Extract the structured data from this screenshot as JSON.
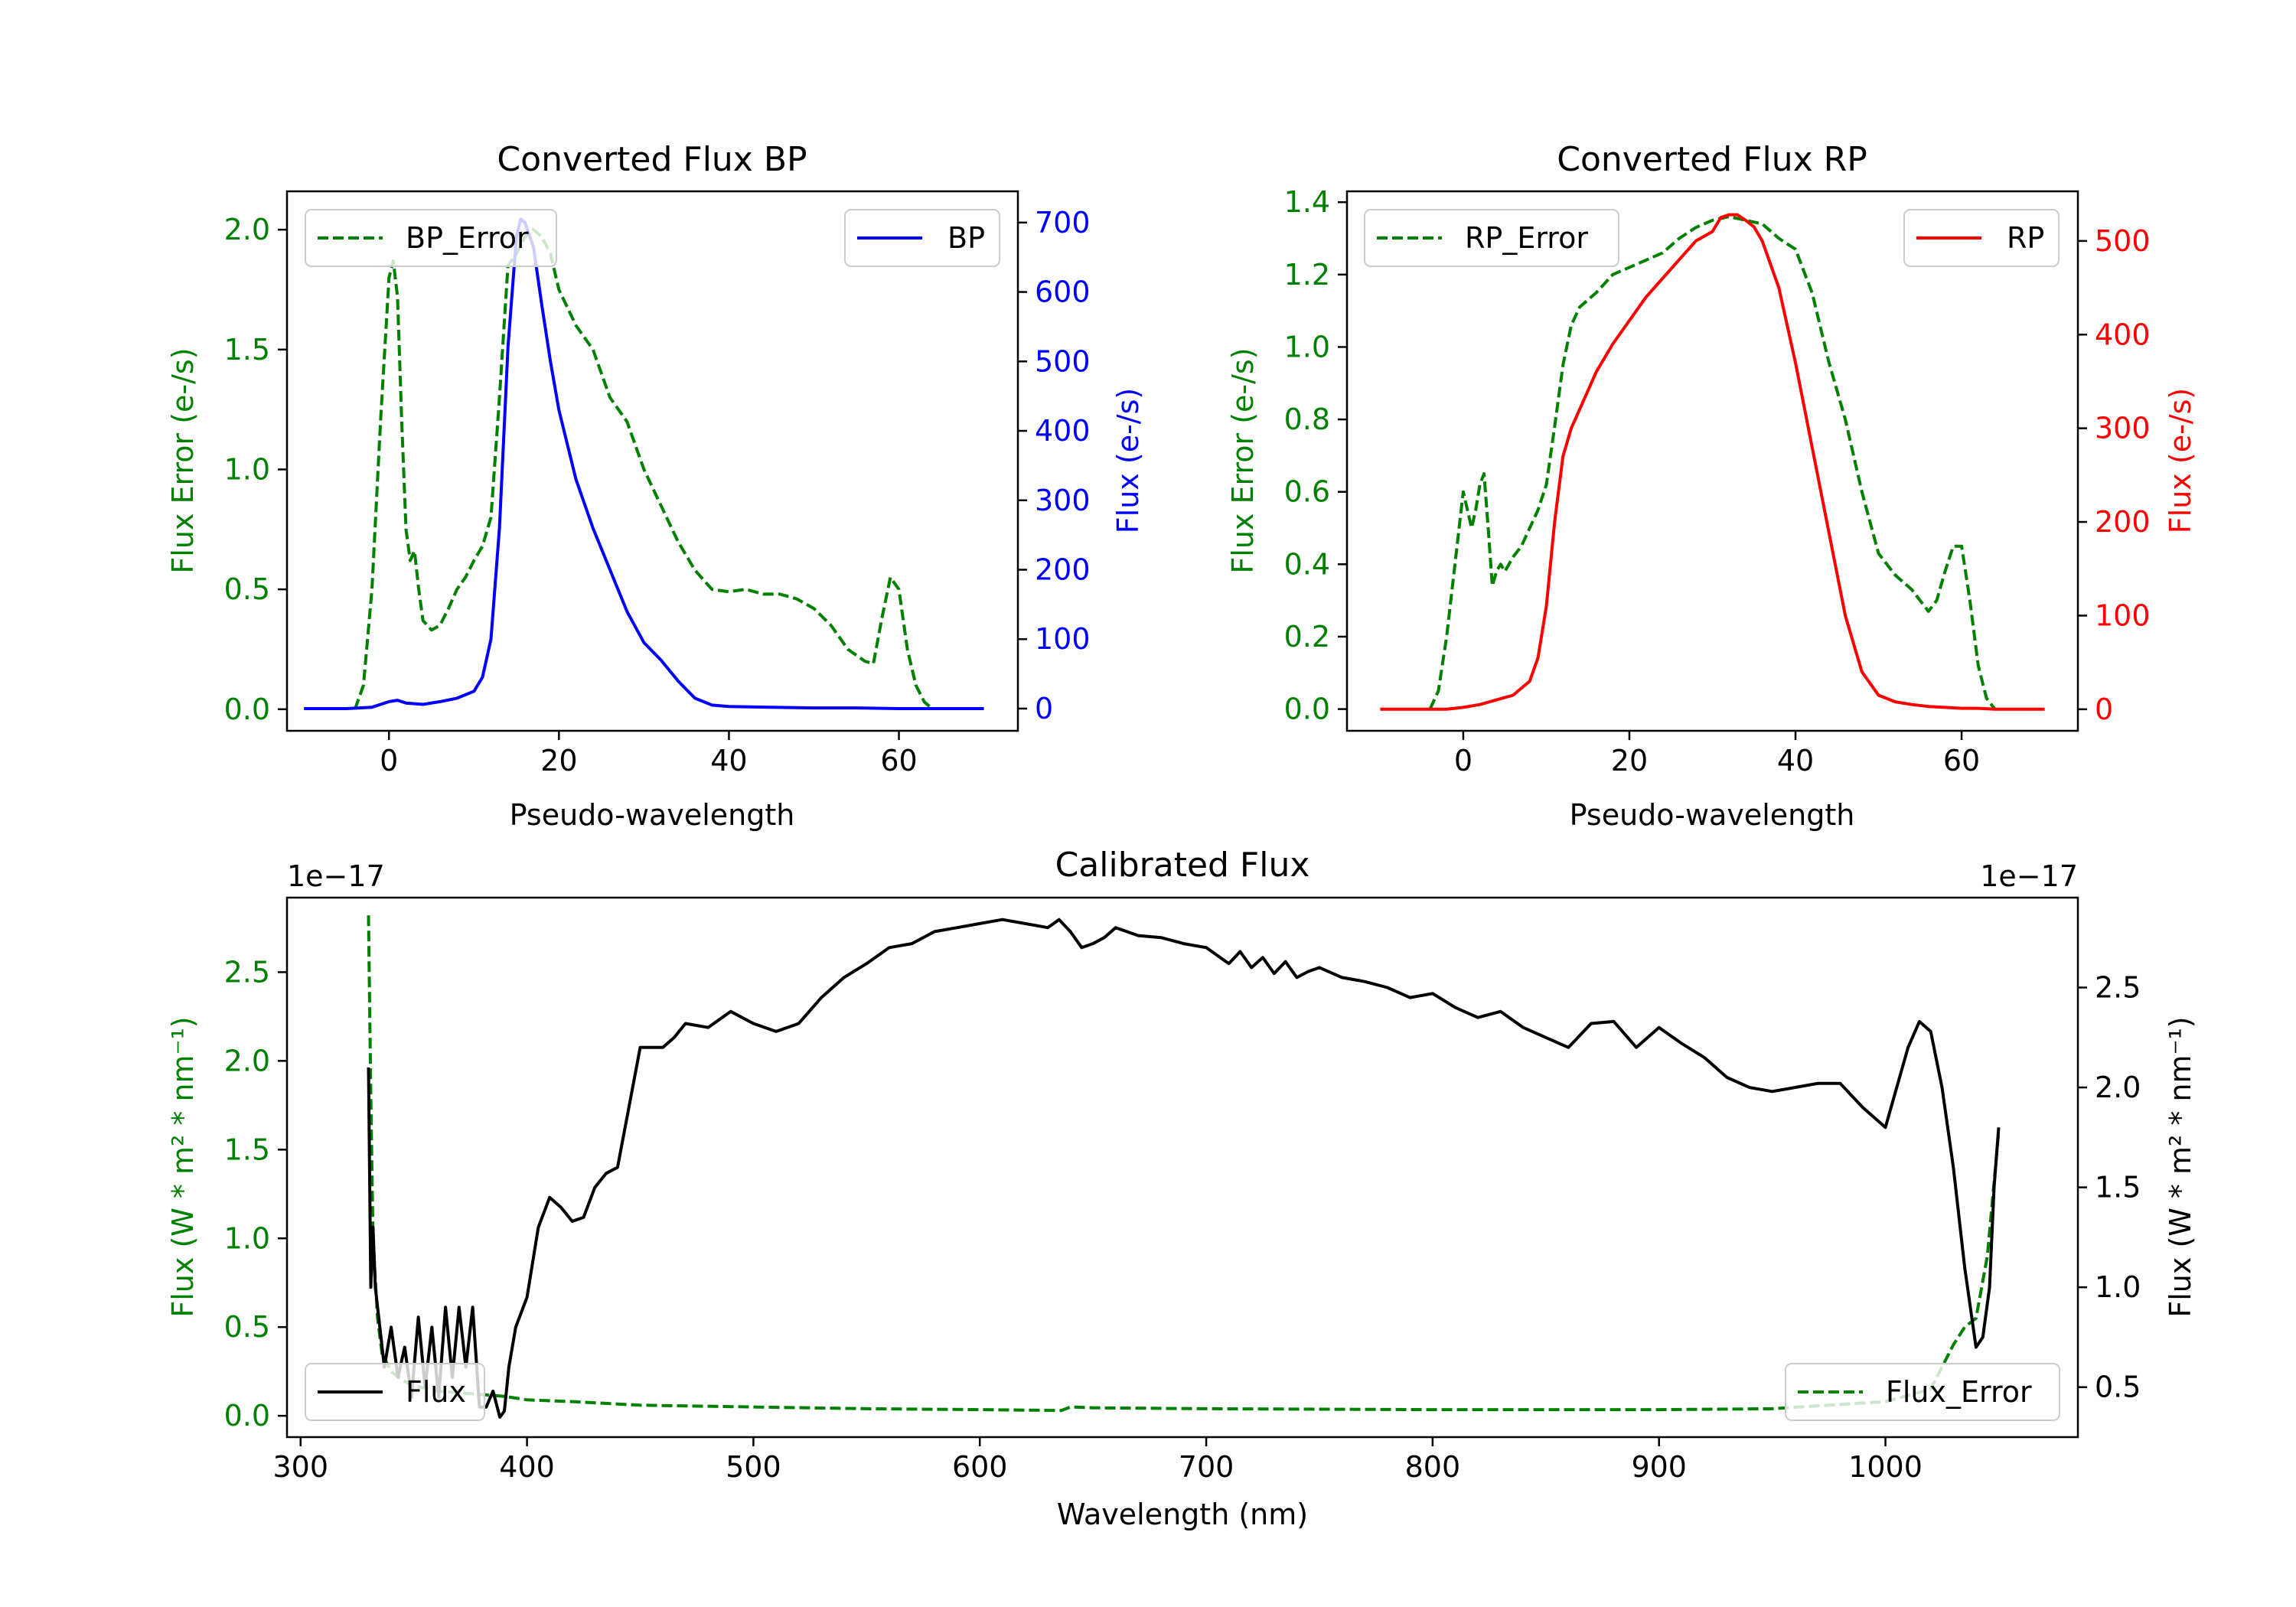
{
  "colors": {
    "green": "#008000",
    "blue": "#0000ff",
    "red": "#ff0000",
    "black": "#000000"
  },
  "chart_data": [
    {
      "type": "line",
      "id": "bp",
      "title": "Converted Flux BP",
      "xlabel": "Pseudo-wavelength",
      "ylabel_left": "Flux Error (e-/s)",
      "ylabel_right": "Flux (e-/s)",
      "xlim": [
        -12,
        74
      ],
      "ylim_left": [
        -0.09,
        2.16
      ],
      "ylim_right": [
        -32,
        745
      ],
      "xticks": [
        0,
        20,
        40,
        60
      ],
      "yticks_left": [
        0.0,
        0.5,
        1.0,
        1.5,
        2.0
      ],
      "yticks_right": [
        0,
        100,
        200,
        300,
        400,
        500,
        600,
        700
      ],
      "legend_left": "top-left",
      "legend_right": "top-right",
      "series": [
        {
          "name": "BP_Error",
          "axis": "left",
          "style": "dashed",
          "color": "#008000",
          "x": [
            -4,
            -3,
            -2,
            -1,
            0,
            0.5,
            1,
            1.5,
            2,
            2.5,
            3,
            3.5,
            4,
            5,
            6,
            7,
            8,
            9,
            10,
            11,
            12,
            13,
            14,
            15,
            16,
            17,
            18,
            19,
            20,
            22,
            24,
            26,
            28,
            30,
            32,
            34,
            36,
            38,
            40,
            42,
            44,
            46,
            48,
            50,
            52,
            54,
            56,
            57,
            58,
            59,
            60,
            61,
            62,
            63,
            64
          ],
          "y": [
            0.0,
            0.1,
            0.5,
            1.2,
            1.8,
            1.87,
            1.72,
            1.2,
            0.75,
            0.62,
            0.66,
            0.5,
            0.37,
            0.33,
            0.35,
            0.42,
            0.5,
            0.55,
            0.62,
            0.68,
            0.8,
            1.3,
            1.85,
            1.9,
            1.97,
            2.0,
            1.97,
            1.9,
            1.75,
            1.6,
            1.5,
            1.3,
            1.2,
            1.0,
            0.85,
            0.7,
            0.58,
            0.5,
            0.49,
            0.5,
            0.48,
            0.48,
            0.46,
            0.42,
            0.35,
            0.25,
            0.2,
            0.19,
            0.38,
            0.55,
            0.5,
            0.25,
            0.1,
            0.03,
            0.0
          ]
        },
        {
          "name": "BP",
          "axis": "right",
          "style": "solid",
          "color": "#0000ff",
          "x": [
            -10,
            -5,
            -2,
            0,
            1,
            2,
            4,
            6,
            8,
            10,
            11,
            12,
            13,
            14,
            15,
            15.5,
            16,
            17,
            18,
            19,
            20,
            22,
            24,
            26,
            28,
            30,
            32,
            34,
            36,
            38,
            40,
            45,
            50,
            55,
            60,
            65,
            70
          ],
          "y": [
            0,
            0,
            2,
            10,
            12,
            8,
            6,
            10,
            15,
            25,
            45,
            100,
            260,
            520,
            680,
            705,
            700,
            665,
            580,
            500,
            430,
            330,
            260,
            200,
            140,
            95,
            70,
            40,
            15,
            5,
            3,
            2,
            1,
            1,
            0,
            0,
            0
          ]
        }
      ]
    },
    {
      "type": "line",
      "id": "rp",
      "title": "Converted Flux RP",
      "xlabel": "Pseudo-wavelength",
      "ylabel_left": "Flux Error (e-/s)",
      "ylabel_right": "Flux (e-/s)",
      "xlim": [
        -14,
        74
      ],
      "ylim_left": [
        -0.06,
        1.43
      ],
      "ylim_right": [
        -23,
        553
      ],
      "xticks": [
        0,
        20,
        40,
        60
      ],
      "yticks_left": [
        0.0,
        0.2,
        0.4,
        0.6,
        0.8,
        1.0,
        1.2,
        1.4
      ],
      "yticks_right": [
        0,
        100,
        200,
        300,
        400,
        500
      ],
      "legend_left": "top-left",
      "legend_right": "top-right",
      "series": [
        {
          "name": "RP_Error",
          "axis": "left",
          "style": "dashed",
          "color": "#008000",
          "x": [
            -4,
            -3,
            -2,
            -1,
            0,
            0.5,
            1,
            1.5,
            2,
            2.5,
            3,
            3.5,
            4,
            4.5,
            5,
            6,
            7,
            8,
            9,
            10,
            11,
            12,
            13,
            14,
            16,
            18,
            20,
            22,
            24,
            26,
            28,
            30,
            32,
            34,
            36,
            38,
            40,
            42,
            44,
            46,
            48,
            50,
            52,
            54,
            55,
            56,
            57,
            58,
            59,
            60,
            61,
            62,
            63,
            64
          ],
          "y": [
            0.0,
            0.05,
            0.2,
            0.4,
            0.6,
            0.55,
            0.5,
            0.55,
            0.62,
            0.65,
            0.5,
            0.34,
            0.38,
            0.4,
            0.38,
            0.42,
            0.45,
            0.5,
            0.55,
            0.62,
            0.78,
            0.95,
            1.06,
            1.11,
            1.15,
            1.2,
            1.22,
            1.24,
            1.26,
            1.3,
            1.33,
            1.35,
            1.36,
            1.35,
            1.34,
            1.3,
            1.27,
            1.15,
            0.96,
            0.8,
            0.6,
            0.43,
            0.37,
            0.33,
            0.3,
            0.27,
            0.3,
            0.38,
            0.45,
            0.45,
            0.3,
            0.12,
            0.03,
            0.0
          ]
        },
        {
          "name": "RP",
          "axis": "right",
          "style": "solid",
          "color": "#ff0000",
          "x": [
            -10,
            -5,
            -2,
            0,
            2,
            4,
            6,
            8,
            9,
            10,
            11,
            12,
            13,
            14,
            16,
            18,
            20,
            22,
            24,
            26,
            28,
            30,
            31,
            32,
            33,
            34,
            35,
            36,
            38,
            40,
            42,
            44,
            46,
            48,
            50,
            52,
            54,
            56,
            58,
            60,
            62,
            64,
            66,
            70
          ],
          "y": [
            0,
            0,
            0,
            2,
            5,
            10,
            15,
            30,
            55,
            110,
            200,
            270,
            300,
            320,
            360,
            390,
            415,
            440,
            460,
            480,
            500,
            510,
            525,
            528,
            528,
            522,
            515,
            500,
            450,
            370,
            280,
            190,
            100,
            40,
            15,
            8,
            5,
            3,
            2,
            1,
            1,
            0,
            0,
            0
          ]
        }
      ]
    },
    {
      "type": "line",
      "id": "cal",
      "title": "Calibrated Flux",
      "xlabel": "Wavelength (nm)",
      "ylabel_left": "Flux (W * m² * nm⁻¹)",
      "ylabel_right": "Flux (W * m² * nm⁻¹)",
      "offset_left": "1e−17",
      "offset_right": "1e−17",
      "xlim": [
        294,
        1085
      ],
      "ylim_left": [
        -0.12,
        2.92
      ],
      "ylim_right": [
        0.25,
        2.95
      ],
      "xticks": [
        300,
        400,
        500,
        600,
        700,
        800,
        900,
        1000
      ],
      "yticks_left": [
        0.0,
        0.5,
        1.0,
        1.5,
        2.0,
        2.5
      ],
      "yticks_right": [
        0.5,
        1.0,
        1.5,
        2.0,
        2.5
      ],
      "legend_left": "lower-left",
      "legend_right": "lower-right",
      "series": [
        {
          "name": "Flux_Error",
          "axis": "left",
          "style": "dashed",
          "color": "#008000",
          "x": [
            330,
            331,
            332,
            334,
            336,
            340,
            345,
            350,
            360,
            370,
            380,
            390,
            400,
            420,
            450,
            500,
            550,
            600,
            636,
            640,
            650,
            700,
            800,
            900,
            950,
            1000,
            1020,
            1030,
            1035,
            1040,
            1045,
            1050
          ],
          "y": [
            2.82,
            1.8,
            1.0,
            0.55,
            0.35,
            0.25,
            0.2,
            0.17,
            0.14,
            0.13,
            0.12,
            0.11,
            0.09,
            0.08,
            0.06,
            0.05,
            0.04,
            0.035,
            0.03,
            0.05,
            0.045,
            0.04,
            0.035,
            0.035,
            0.04,
            0.08,
            0.15,
            0.4,
            0.5,
            0.55,
            0.9,
            1.6
          ]
        },
        {
          "name": "Flux",
          "axis": "right",
          "style": "solid",
          "color": "#000000",
          "x": [
            330,
            331,
            332,
            333,
            335,
            337,
            340,
            343,
            346,
            349,
            352,
            355,
            358,
            361,
            364,
            367,
            370,
            373,
            376,
            379,
            382,
            385,
            388,
            390,
            392,
            395,
            400,
            405,
            410,
            415,
            420,
            425,
            430,
            435,
            440,
            445,
            450,
            455,
            460,
            465,
            470,
            480,
            490,
            500,
            510,
            520,
            530,
            540,
            550,
            560,
            570,
            580,
            590,
            600,
            610,
            620,
            630,
            635,
            640,
            645,
            650,
            655,
            660,
            670,
            680,
            690,
            700,
            710,
            715,
            720,
            725,
            730,
            735,
            740,
            745,
            750,
            760,
            770,
            780,
            790,
            800,
            810,
            820,
            830,
            840,
            850,
            860,
            870,
            880,
            890,
            900,
            910,
            920,
            930,
            940,
            950,
            960,
            970,
            980,
            990,
            1000,
            1010,
            1015,
            1020,
            1025,
            1030,
            1035,
            1040,
            1043,
            1046,
            1048,
            1050
          ],
          "y": [
            2.1,
            1.0,
            1.3,
            1.0,
            0.8,
            0.6,
            0.8,
            0.55,
            0.7,
            0.45,
            0.85,
            0.5,
            0.8,
            0.45,
            0.9,
            0.55,
            0.9,
            0.6,
            0.9,
            0.4,
            0.4,
            0.48,
            0.35,
            0.38,
            0.6,
            0.8,
            0.95,
            1.3,
            1.45,
            1.4,
            1.33,
            1.35,
            1.5,
            1.57,
            1.6,
            1.9,
            2.2,
            2.2,
            2.2,
            2.25,
            2.32,
            2.3,
            2.38,
            2.32,
            2.28,
            2.32,
            2.45,
            2.55,
            2.62,
            2.7,
            2.72,
            2.78,
            2.8,
            2.82,
            2.84,
            2.82,
            2.8,
            2.84,
            2.78,
            2.7,
            2.72,
            2.75,
            2.8,
            2.76,
            2.75,
            2.72,
            2.7,
            2.62,
            2.68,
            2.6,
            2.65,
            2.57,
            2.63,
            2.55,
            2.58,
            2.6,
            2.55,
            2.53,
            2.5,
            2.45,
            2.47,
            2.4,
            2.35,
            2.38,
            2.3,
            2.25,
            2.2,
            2.32,
            2.33,
            2.2,
            2.3,
            2.22,
            2.15,
            2.05,
            2.0,
            1.98,
            2.0,
            2.02,
            2.02,
            1.9,
            1.8,
            2.2,
            2.33,
            2.28,
            2.0,
            1.6,
            1.1,
            0.7,
            0.75,
            1.0,
            1.5,
            1.8
          ]
        }
      ]
    }
  ]
}
